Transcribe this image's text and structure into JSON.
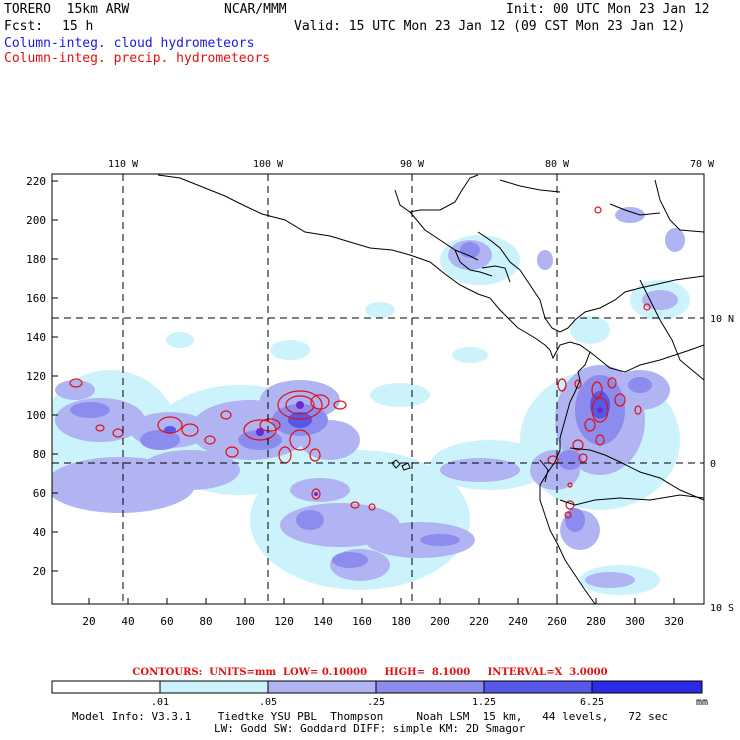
{
  "header": {
    "model": "TORERO  15km ARW",
    "org": "NCAR/MMM",
    "init": "Init: 00 UTC Mon 23 Jan 12",
    "fcst_label": "Fcst:",
    "fcst_value": "15 h",
    "valid": "Valid: 15 UTC Mon 23 Jan 12 (09 CST Mon 23 Jan 12)",
    "field1": "Column-integ. cloud hydrometeors",
    "field2": "Column-integ. precip. hydrometeors"
  },
  "map": {
    "lon_labels": [
      "110 W",
      "100 W",
      "90 W",
      "80 W",
      "70 W"
    ],
    "lat_labels": [
      "10 N",
      "0",
      "10 S"
    ],
    "y_ticks": [
      "220",
      "200",
      "180",
      "160",
      "140",
      "120",
      "100",
      "80",
      "60",
      "40",
      "20"
    ],
    "x_ticks": [
      "20",
      "40",
      "60",
      "80",
      "100",
      "120",
      "140",
      "160",
      "180",
      "200",
      "220",
      "240",
      "260",
      "280",
      "300",
      "320"
    ]
  },
  "contour_info": "CONTOURS:  UNITS=mm  LOW= 0.10000     HIGH=  8.1000     INTERVAL=X  3.0000",
  "colorbar": {
    "labels": [
      ".01",
      ".05",
      ".25",
      "1.25",
      "6.25"
    ],
    "unit": "mm",
    "colors": [
      "#ffffff",
      "#ccf3fb",
      "#b0b4f2",
      "#8c8cee",
      "#5858e8",
      "#2b2be6"
    ]
  },
  "footer": {
    "line1": "Model Info: V3.3.1    Tiedtke YSU PBL  Thompson     Noah LSM  15 km,   44 levels,   72 sec",
    "line2": "LW: Godd SW: Goddard DIFF: simple KM: 2D Smagor"
  }
}
